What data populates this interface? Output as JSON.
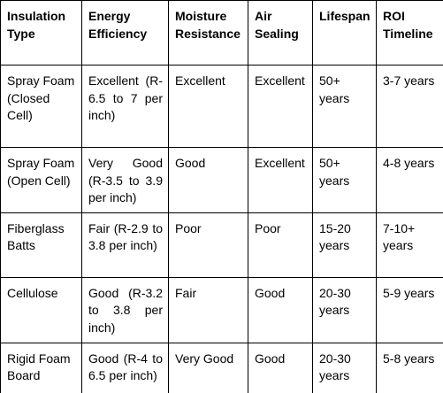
{
  "table": {
    "header": [
      "Insulation Type",
      "Energy Efficiency",
      "Moisture Resistance",
      "Air Sealing",
      "Lifespan",
      "ROI Timeline"
    ],
    "rows": [
      [
        "Spray Foam (Closed Cell)",
        "Excellent (R-6.5 to 7 per inch)",
        "Excellent",
        "Excellent",
        "50+ years",
        "3-7 years"
      ],
      [
        "Spray Foam (Open Cell)",
        "Very Good (R-3.5 to 3.9 per inch)",
        "Good",
        "Excellent",
        "50+ years",
        "4-8 years"
      ],
      [
        "Fiberglass Batts",
        "Fair (R-2.9 to 3.8 per inch)",
        "Poor",
        "Poor",
        "15-20 years",
        "7-10+ years"
      ],
      [
        "Cellulose",
        "Good (R-3.2 to 3.8 per inch)",
        "Fair",
        "Good",
        "20-30 years",
        "5-9 years"
      ],
      [
        "Rigid Foam Board",
        "Good (R-4 to 6.5 per inch)",
        "Very Good",
        "Good",
        "20-30 years",
        "5-8 years"
      ]
    ]
  }
}
